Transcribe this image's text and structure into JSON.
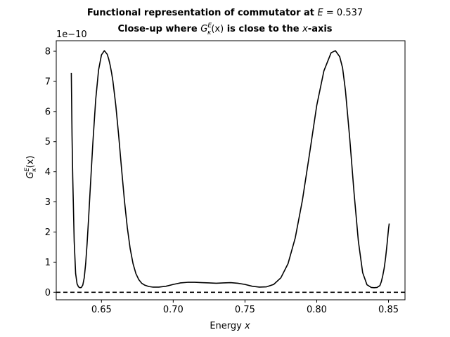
{
  "chart_data": {
    "type": "line",
    "title_line1_text": "Functional representation of commutator at ",
    "title_line1_var": "E",
    "title_line1_value": " = 0.537",
    "title_line2_a": "Close-up where ",
    "title_line2_func": "G",
    "title_line2_sup": "E",
    "title_line2_sub": "κ",
    "title_line2_arg": "(x)",
    "title_line2_b": " is close to the ",
    "title_line2_var": "x",
    "title_line2_c": "-axis",
    "xlabel_text": "Energy ",
    "xlabel_var": "x",
    "ylabel_func": "G",
    "ylabel_sup": "E",
    "ylabel_sub": "κ",
    "ylabel_arg": "(x)",
    "offset_text": "1e−10",
    "x_ticks": [
      "0.65",
      "0.70",
      "0.75",
      "0.80",
      "0.85"
    ],
    "x_tick_values": [
      0.65,
      0.7,
      0.75,
      0.8,
      0.85
    ],
    "y_ticks": [
      "0",
      "1",
      "2",
      "3",
      "4",
      "5",
      "6",
      "7",
      "8"
    ],
    "y_tick_values": [
      0,
      1,
      2,
      3,
      4,
      5,
      6,
      7,
      8
    ],
    "xlim": [
      0.6185,
      0.8615
    ],
    "ylim": [
      -0.25,
      8.35
    ],
    "y_scale_factor": 1e-10,
    "reference_line_y": 0,
    "series": [
      {
        "color": "#000000",
        "x": [
          0.629,
          0.6295,
          0.63,
          0.631,
          0.632,
          0.633,
          0.634,
          0.635,
          0.636,
          0.637,
          0.638,
          0.639,
          0.64,
          0.641,
          0.642,
          0.644,
          0.646,
          0.648,
          0.65,
          0.652,
          0.654,
          0.655,
          0.656,
          0.657,
          0.658,
          0.66,
          0.662,
          0.664,
          0.666,
          0.668,
          0.67,
          0.672,
          0.674,
          0.676,
          0.678,
          0.68,
          0.683,
          0.686,
          0.69,
          0.695,
          0.7,
          0.705,
          0.71,
          0.715,
          0.72,
          0.725,
          0.73,
          0.735,
          0.74,
          0.745,
          0.75,
          0.755,
          0.76,
          0.765,
          0.77,
          0.775,
          0.78,
          0.785,
          0.79,
          0.795,
          0.8,
          0.805,
          0.81,
          0.813,
          0.816,
          0.818,
          0.82,
          0.823,
          0.826,
          0.829,
          0.832,
          0.835,
          0.838,
          0.84,
          0.842,
          0.844,
          0.845,
          0.846,
          0.847,
          0.848,
          0.849,
          0.85,
          0.8505
        ],
        "y": [
          7.28,
          5.2,
          3.8,
          1.7,
          0.62,
          0.28,
          0.18,
          0.15,
          0.16,
          0.24,
          0.48,
          0.95,
          1.62,
          2.42,
          3.28,
          4.95,
          6.4,
          7.38,
          7.88,
          8.02,
          7.9,
          7.75,
          7.55,
          7.3,
          7.0,
          6.2,
          5.2,
          4.1,
          3.05,
          2.15,
          1.45,
          0.95,
          0.62,
          0.42,
          0.3,
          0.24,
          0.19,
          0.17,
          0.17,
          0.2,
          0.26,
          0.31,
          0.33,
          0.33,
          0.32,
          0.31,
          0.3,
          0.31,
          0.32,
          0.3,
          0.26,
          0.2,
          0.17,
          0.18,
          0.26,
          0.48,
          0.95,
          1.8,
          3.05,
          4.6,
          6.2,
          7.35,
          7.95,
          8.02,
          7.82,
          7.45,
          6.7,
          5.1,
          3.3,
          1.7,
          0.65,
          0.25,
          0.16,
          0.15,
          0.16,
          0.22,
          0.35,
          0.55,
          0.8,
          1.15,
          1.6,
          2.1,
          2.28
        ]
      }
    ]
  }
}
